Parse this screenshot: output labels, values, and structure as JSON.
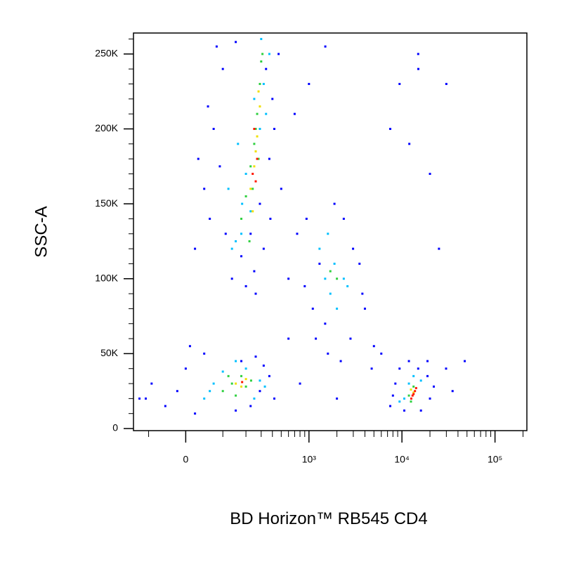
{
  "chart_data": {
    "type": "scatter",
    "xlabel": "BD Horizon™ RB545 CD4",
    "ylabel": "SSC-A",
    "xscale": "biexponential",
    "xlim": [
      -160,
      220000
    ],
    "ylim": [
      -1400,
      264000
    ],
    "xticks": [
      0,
      {
        "value": 1000,
        "label": "10³"
      },
      {
        "value": 10000,
        "label": "10⁴"
      },
      {
        "value": 100000,
        "label": "10⁵"
      }
    ],
    "xminorticks": [
      -100,
      100,
      200,
      300,
      400,
      500,
      600,
      700,
      800,
      900,
      2000,
      3000,
      4000,
      5000,
      6000,
      7000,
      8000,
      9000,
      20000,
      30000,
      40000,
      50000,
      60000,
      70000,
      80000,
      90000,
      200000
    ],
    "yticks": [
      0,
      {
        "value": 50000,
        "label": "50K"
      },
      {
        "value": 100000,
        "label": "100K"
      },
      {
        "value": 150000,
        "label": "150K"
      },
      {
        "value": 200000,
        "label": "200K"
      },
      {
        "value": 250000,
        "label": "250K"
      }
    ],
    "yminorticks": [
      10000,
      20000,
      30000,
      40000,
      60000,
      70000,
      80000,
      90000,
      110000,
      120000,
      130000,
      140000,
      160000,
      170000,
      180000,
      190000,
      210000,
      220000,
      230000,
      240000,
      260000
    ],
    "series": [
      {
        "color": "#0000ff",
        "x": [
          22,
          45,
          71,
          100,
          60,
          134,
          176,
          227,
          290,
          370,
          400,
          468,
          30,
          80,
          150,
          200,
          250,
          320,
          420,
          500,
          110,
          90,
          55,
          340,
          380,
          260,
          -134,
          -90,
          -50,
          0,
          22,
          45,
          176,
          227,
          290,
          370,
          420,
          -20,
          10,
          150,
          260,
          320,
          -110,
          745,
          941,
          1186,
          1494,
          1882,
          2370,
          2983,
          3757,
          4000,
          900,
          1300,
          2800,
          1600,
          5000,
          3500,
          2200,
          1100,
          600,
          600,
          800,
          2000,
          4730,
          6000,
          18820,
          29800,
          47300,
          9430,
          14950,
          7490,
          12000,
          20000,
          25000,
          15000,
          30000,
          1500,
          1000,
          700,
          35000,
          7490,
          8500,
          9430,
          11880,
          14950,
          18820,
          20000,
          10600,
          16000,
          8000,
          22000
        ],
        "y": [
          120000,
          160000,
          200000,
          240000,
          140000,
          100000,
          115000,
          130000,
          150000,
          180000,
          220000,
          250000,
          180000,
          255000,
          258000,
          95000,
          105000,
          120000,
          200000,
          160000,
          130000,
          175000,
          215000,
          240000,
          140000,
          90000,
          20000,
          30000,
          15000,
          40000,
          10000,
          50000,
          45000,
          15000,
          25000,
          35000,
          20000,
          25000,
          55000,
          12000,
          48000,
          42000,
          20000,
          130000,
          140000,
          60000,
          70000,
          150000,
          140000,
          120000,
          90000,
          80000,
          95000,
          110000,
          60000,
          50000,
          55000,
          110000,
          45000,
          80000,
          100000,
          60000,
          30000,
          20000,
          40000,
          50000,
          45000,
          40000,
          45000,
          230000,
          250000,
          200000,
          190000,
          170000,
          120000,
          240000,
          230000,
          255000,
          230000,
          210000,
          25000,
          15000,
          30000,
          40000,
          45000,
          40000,
          35000,
          20000,
          12000,
          12000,
          22000,
          28000
        ]
      },
      {
        "color": "#00c0ff",
        "x": [
          134,
          176,
          227,
          150,
          200,
          290,
          320,
          370,
          250,
          180,
          300,
          340,
          120,
          160,
          45,
          71,
          100,
          200,
          250,
          290,
          150,
          60,
          330,
          1494,
          1882,
          1700,
          2370,
          1300,
          2000,
          1600,
          2600,
          10600,
          11880,
          13330,
          16000,
          9430
        ],
        "y": [
          120000,
          130000,
          145000,
          125000,
          170000,
          200000,
          230000,
          250000,
          220000,
          150000,
          260000,
          210000,
          160000,
          190000,
          20000,
          30000,
          38000,
          40000,
          20000,
          32000,
          45000,
          25000,
          28000,
          100000,
          110000,
          90000,
          100000,
          120000,
          80000,
          130000,
          95000,
          20000,
          30000,
          35000,
          32000,
          18000
        ]
      },
      {
        "color": "#30d040",
        "x": [
          176,
          200,
          227,
          250,
          270,
          290,
          300,
          220,
          240,
          280,
          310,
          260,
          100,
          134,
          176,
          200,
          150,
          230,
          120,
          1700,
          2000,
          11880,
          13330,
          12500
        ],
        "y": [
          140000,
          155000,
          175000,
          190000,
          210000,
          230000,
          245000,
          125000,
          160000,
          180000,
          250000,
          200000,
          25000,
          30000,
          35000,
          28000,
          22000,
          32000,
          35000,
          105000,
          100000,
          22000,
          28000,
          18000
        ]
      },
      {
        "color": "#f0e000",
        "x": [
          227,
          250,
          270,
          290,
          240,
          260,
          280,
          150,
          176,
          200,
          13330,
          12500
        ],
        "y": [
          160000,
          175000,
          195000,
          215000,
          145000,
          185000,
          225000,
          30000,
          28000,
          33000,
          24000,
          26000
        ]
      },
      {
        "color": "#ff1800",
        "x": [
          240,
          260,
          250,
          270,
          180,
          13000,
          13800,
          12600,
          14200,
          13330
        ],
        "y": [
          170000,
          165000,
          200000,
          180000,
          31000,
          22000,
          25000,
          20000,
          27000,
          23000
        ]
      }
    ]
  }
}
